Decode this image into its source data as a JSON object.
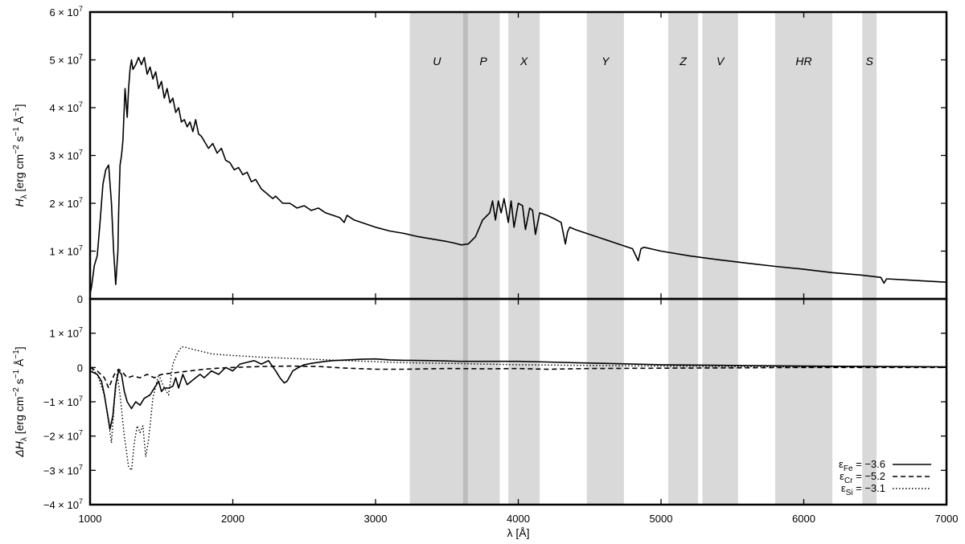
{
  "chart_data": [
    {
      "panel": "top",
      "type": "line",
      "xlim": [
        1000,
        7000
      ],
      "ylim": [
        0,
        60000000
      ],
      "x_ticks": [
        1000,
        2000,
        3000,
        4000,
        5000,
        6000,
        7000
      ],
      "x_tick_labels": [
        "1000",
        "2000",
        "3000",
        "4000",
        "5000",
        "6000",
        "7000"
      ],
      "xlabel": "λ [Å]",
      "y_ticks": [
        {
          "value": 0,
          "mant": "0",
          "exp": ""
        },
        {
          "value": 10000000,
          "mant": "1 × 10",
          "exp": "7"
        },
        {
          "value": 20000000,
          "mant": "2 × 10",
          "exp": "7"
        },
        {
          "value": 30000000,
          "mant": "3 × 10",
          "exp": "7"
        },
        {
          "value": 40000000,
          "mant": "4 × 10",
          "exp": "7"
        },
        {
          "value": 50000000,
          "mant": "5 × 10",
          "exp": "7"
        },
        {
          "value": 60000000,
          "mant": "6 × 10",
          "exp": "7"
        }
      ],
      "ylabel": {
        "sym": "H",
        "sub": "λ",
        "rest": " [erg cm",
        "e1": "−2",
        "mid": " s",
        "e2": "−1",
        "end": " Å",
        "e3": "−1",
        "close": "]"
      },
      "bands": [
        {
          "label": "U",
          "from": 3240,
          "to": 3620
        },
        {
          "label": "P",
          "from": 3640,
          "to": 3870
        },
        {
          "label": "X",
          "from": 3930,
          "to": 4150
        },
        {
          "label": "Y",
          "from": 4480,
          "to": 4740
        },
        {
          "label": "Z",
          "from": 5050,
          "to": 5260
        },
        {
          "label": "V",
          "from": 5290,
          "to": 5540
        },
        {
          "label": "HR",
          "from": 5800,
          "to": 6200
        },
        {
          "label": "S",
          "from": 6410,
          "to": 6510
        }
      ],
      "balmer_line": 3630,
      "series": [
        {
          "style": "solid",
          "x": [
            1000,
            1010,
            1030,
            1050,
            1070,
            1090,
            1110,
            1130,
            1150,
            1165,
            1180,
            1195,
            1200,
            1210,
            1220,
            1230,
            1245,
            1260,
            1270,
            1280,
            1290,
            1300,
            1320,
            1340,
            1360,
            1380,
            1400,
            1420,
            1440,
            1460,
            1480,
            1500,
            1520,
            1540,
            1560,
            1580,
            1600,
            1620,
            1640,
            1660,
            1680,
            1700,
            1720,
            1740,
            1760,
            1780,
            1800,
            1830,
            1860,
            1890,
            1920,
            1950,
            1980,
            2010,
            2040,
            2070,
            2100,
            2130,
            2160,
            2200,
            2240,
            2280,
            2300,
            2350,
            2400,
            2450,
            2500,
            2550,
            2600,
            2650,
            2700,
            2750,
            2780,
            2800,
            2850,
            2900,
            3000,
            3100,
            3200,
            3300,
            3400,
            3500,
            3550,
            3600,
            3650,
            3700,
            3750,
            3800,
            3820,
            3840,
            3860,
            3880,
            3900,
            3930,
            3950,
            3970,
            4000,
            4030,
            4050,
            4080,
            4100,
            4120,
            4150,
            4200,
            4250,
            4300,
            4330,
            4345,
            4360,
            4400,
            4500,
            4600,
            4700,
            4800,
            4840,
            4860,
            4880,
            5000,
            5200,
            5400,
            5600,
            5800,
            6000,
            6200,
            6400,
            6540,
            6562,
            6580,
            6700,
            7000
          ],
          "y": [
            1000000,
            2500000,
            7000000,
            9000000,
            16000000,
            24000000,
            27000000,
            28000000,
            20000000,
            10000000,
            3000000,
            10000000,
            18000000,
            28000000,
            30000000,
            33000000,
            44000000,
            38000000,
            44000000,
            48000000,
            50000000,
            48000000,
            49000000,
            50500000,
            49000000,
            50500000,
            47000000,
            48500000,
            46000000,
            47500000,
            44000000,
            45500000,
            42000000,
            44000000,
            41000000,
            42000000,
            39000000,
            40000000,
            37000000,
            37500000,
            36000000,
            37000000,
            35000000,
            37500000,
            34500000,
            34000000,
            33000000,
            31500000,
            32500000,
            30500000,
            31500000,
            29000000,
            28500000,
            27000000,
            27500000,
            26000000,
            26500000,
            24500000,
            25000000,
            23000000,
            22000000,
            21000000,
            21500000,
            20000000,
            20000000,
            19000000,
            19500000,
            18500000,
            19000000,
            18000000,
            17500000,
            17000000,
            16000000,
            17500000,
            16500000,
            16000000,
            15000000,
            14200000,
            13700000,
            13000000,
            12500000,
            12000000,
            11700000,
            11300000,
            11500000,
            13000000,
            16500000,
            18000000,
            20500000,
            16500000,
            20500000,
            18000000,
            21000000,
            16000000,
            20500000,
            15000000,
            20000000,
            19500000,
            14500000,
            19000000,
            18500000,
            13500000,
            18000000,
            17500000,
            16800000,
            16000000,
            11500000,
            14000000,
            15000000,
            14500000,
            13500000,
            12500000,
            11500000,
            10500000,
            8000000,
            10500000,
            10800000,
            10000000,
            9000000,
            8200000,
            7500000,
            6800000,
            6200000,
            5500000,
            5000000,
            4500000,
            3300000,
            4200000,
            4000000,
            3500000
          ]
        }
      ]
    },
    {
      "panel": "bottom",
      "type": "line",
      "xlim": [
        1000,
        7000
      ],
      "ylim": [
        -40000000,
        20000000
      ],
      "y_ticks": [
        {
          "value": -40000000,
          "mant": "−4 × 10",
          "exp": "7"
        },
        {
          "value": -30000000,
          "mant": "−3 × 10",
          "exp": "7"
        },
        {
          "value": -20000000,
          "mant": "−2 × 10",
          "exp": "7"
        },
        {
          "value": -10000000,
          "mant": "−1 × 10",
          "exp": "7"
        },
        {
          "value": 0,
          "mant": "0",
          "exp": ""
        },
        {
          "value": 10000000,
          "mant": "1 × 10",
          "exp": "7"
        }
      ],
      "ylabel": {
        "sym": "ΔH",
        "sub": "λ",
        "rest": " [erg cm",
        "e1": "−2",
        "mid": " s",
        "e2": "−1",
        "end": " Å",
        "e3": "−1",
        "close": "]"
      },
      "series": [
        {
          "name": "ε",
          "sub": "Fe",
          "value": " = −3.6",
          "style": "solid",
          "x": [
            1000,
            1050,
            1080,
            1100,
            1120,
            1140,
            1160,
            1180,
            1200,
            1220,
            1240,
            1260,
            1290,
            1320,
            1350,
            1380,
            1420,
            1450,
            1480,
            1500,
            1520,
            1550,
            1580,
            1600,
            1620,
            1650,
            1680,
            1710,
            1740,
            1770,
            1800,
            1850,
            1900,
            1950,
            2000,
            2050,
            2100,
            2150,
            2200,
            2250,
            2300,
            2330,
            2360,
            2380,
            2420,
            2460,
            2500,
            2550,
            2600,
            2650,
            2700,
            2800,
            2900,
            3000,
            3100,
            3200,
            3400,
            3600,
            3800,
            4000,
            4200,
            4400,
            4600,
            4800,
            5000,
            5500,
            6000,
            6500,
            7000
          ],
          "y": [
            -1000000,
            -2000000,
            -4000000,
            -8000000,
            -13000000,
            -18000000,
            -14000000,
            -5000000,
            -1000000,
            -2000000,
            -7000000,
            -10000000,
            -12000000,
            -10000000,
            -11000000,
            -9000000,
            -8000000,
            -6000000,
            -4000000,
            -7000000,
            -6000000,
            -6000000,
            -5500000,
            -3000000,
            -6000000,
            -2000000,
            -5000000,
            -4000000,
            -3000000,
            -2000000,
            -3000000,
            -1000000,
            -2000000,
            0,
            -1000000,
            1000000,
            1500000,
            2000000,
            1000000,
            2000000,
            -1000000,
            -3000000,
            -4500000,
            -4000000,
            -1000000,
            0,
            800000,
            1200000,
            1500000,
            1800000,
            2000000,
            2200000,
            2400000,
            2500000,
            2200000,
            2100000,
            2000000,
            1800000,
            1800000,
            1800000,
            1600000,
            1400000,
            1200000,
            1000000,
            800000,
            600000,
            400000,
            300000,
            200000
          ]
        },
        {
          "name": "ε",
          "sub": "Cr",
          "value": " = −5.2",
          "style": "dashed",
          "x": [
            1000,
            1050,
            1100,
            1130,
            1150,
            1170,
            1200,
            1230,
            1260,
            1300,
            1350,
            1400,
            1450,
            1500,
            1600,
            1700,
            1800,
            1900,
            2000,
            2200,
            2400,
            2600,
            2800,
            3000,
            3200,
            3500,
            3800,
            4000,
            4200,
            4500,
            5000,
            5500,
            6000,
            7000
          ],
          "y": [
            0,
            -1000000,
            -3000000,
            -6000000,
            -4000000,
            -2000000,
            -500000,
            -1500000,
            -3000000,
            -2500000,
            -3000000,
            -2000000,
            -3000000,
            -2000000,
            -1500000,
            -1000000,
            -500000,
            -200000,
            0,
            300000,
            400000,
            300000,
            -200000,
            -500000,
            -500000,
            -300000,
            -400000,
            -300000,
            -500000,
            -300000,
            -200000,
            -100000,
            0,
            0
          ]
        },
        {
          "name": "ε",
          "sub": "Si",
          "value": " = −3.1",
          "style": "dotted",
          "x": [
            1000,
            1050,
            1100,
            1130,
            1150,
            1170,
            1190,
            1210,
            1240,
            1270,
            1290,
            1310,
            1330,
            1350,
            1370,
            1390,
            1410,
            1440,
            1480,
            1520,
            1550,
            1580,
            1610,
            1640,
            1660,
            1700,
            1750,
            1800,
            1850,
            1900,
            2000,
            2200,
            2500,
            2800,
            3000,
            3200,
            3500,
            4000,
            4500,
            5000,
            6000,
            7000
          ],
          "y": [
            0,
            -2000000,
            -8000000,
            -16000000,
            -22000000,
            -10000000,
            -2000000,
            -8000000,
            -20000000,
            -29000000,
            -30000000,
            -22000000,
            -17000000,
            -19000000,
            -17000000,
            -26000000,
            -21000000,
            -9000000,
            -2000000,
            -6000000,
            -8000000,
            1000000,
            4000000,
            6000000,
            6000000,
            5500000,
            5000000,
            4500000,
            4000000,
            3800000,
            3500000,
            3000000,
            2500000,
            2000000,
            1700000,
            1400000,
            1200000,
            800000,
            600000,
            400000,
            200000,
            100000
          ]
        }
      ]
    }
  ]
}
